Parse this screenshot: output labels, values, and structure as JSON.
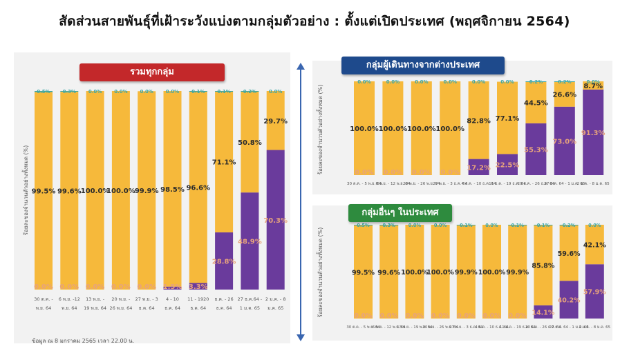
{
  "title": "สัดส่วนสายพันธุ์ที่เฝ้าระวังแบ่งตามกลุ่มตัวอย่าง : ตั้งแต่เปิดประเทศ (พฤศจิกายน 2564)",
  "footnote": "ข้อมูล ณ 8 มกราคม 2565 เวลา 22.00 น.",
  "colors": {
    "yellow": "#f6b93b",
    "purple": "#6a3b9c",
    "top_label": "#3aa6a6"
  },
  "chart_data": [
    {
      "type": "bar",
      "stacked": true,
      "panel_title": "รวมทุกกลุ่ม",
      "ylabel": "ร้อยละของจำนวนตัวอย่างทั้งหมด (%)",
      "ylim": [
        0,
        100
      ],
      "categories": [
        "30 ต.ค. - 5 พ.ย. 64",
        "6 พ.ย. - 12 พ.ย. 64",
        "13 พ.ย. - 19 พ.ย. 64",
        "20 พ.ย. - 26 พ.ย. 64",
        "27 พ.ย. - 3 ธ.ค. 64",
        "4 - 10 ธ.ค. 64",
        "11 - 1920 ธ.ค. 64",
        "ธ.ค. - 26 ธ.ค. 64",
        "27 ธ.ค. 64 - 1 ม.ค. 65",
        "2 ม.ค. - 8 ม.ค. 65"
      ],
      "tick_line1": [
        "30 ต.ค. -",
        "6 พ.ย. -12",
        "13 พ.ย. -",
        "20 พ.ย. -",
        "27 พ.ย. - 3",
        "4 - 10",
        "11 - 1920",
        "ธ.ค. - 26",
        "27 ธ.ค.64 -",
        "2 ม.ค. - 8"
      ],
      "tick_line2": [
        "พ.ย. 64",
        "พ.ย. 64",
        "19 พ.ย. 64",
        "26 พ.ย. 64",
        "ธ.ค. 64",
        "ธ.ค. 64",
        "ธ.ค. 64",
        "ธ.ค. 64",
        "1 ม.ค. 65",
        "ม.ค. 65"
      ],
      "series": [
        {
          "values": [
            0.0,
            0.0,
            0.0,
            0.0,
            0.0,
            1.5,
            3.3,
            28.8,
            48.9,
            70.3
          ],
          "labels": [
            "0.0%",
            "0.0%",
            "0.0%",
            "0.0%",
            "0.0%",
            "1.5%",
            "3.3%",
            "28.8%",
            "48.9%",
            "70.3%"
          ]
        },
        {
          "values": [
            99.5,
            99.6,
            100.0,
            100.0,
            99.9,
            98.5,
            96.6,
            71.1,
            50.8,
            29.7
          ],
          "labels": [
            "99.5%",
            "99.6%",
            "100.0%",
            "100.0%",
            "99.9%",
            "98.5%",
            "96.6%",
            "71.1%",
            "50.8%",
            "29.7%"
          ]
        },
        {
          "values": [
            0.5,
            0.3,
            0.0,
            0.0,
            0.0,
            0.0,
            0.1,
            0.1,
            0.2,
            0.0
          ],
          "labels": [
            "0.5%",
            "0.3%",
            "0.0%",
            "0.0%",
            "0.0%",
            "0.0%",
            "0.1%",
            "0.1%",
            "0.2%",
            "0.0%"
          ]
        }
      ]
    },
    {
      "type": "bar",
      "stacked": true,
      "panel_title": "กลุ่มผู้เดินทางจากต่างประเทศ",
      "ylabel": "ร้อยละของจำนวนตัวอย่างทั้งหมด (%)",
      "ylim": [
        0,
        100
      ],
      "categories": [
        "30 ต.ค. - 5 พ.ย. 64",
        "6 - 12 พ.ย. 64",
        "20 - 26 พ.ย. 64",
        "27 พ.ย. - 3 ธ.ค. 64",
        "4 - 10 ธ.ค. 64",
        "11 - 19 ธ.ค. 64",
        "20 - 26 ธ.ค. 64",
        "27 ธ.ค. 64 - 1 ม.ค. 65",
        "2 - 8 ม.ค. 65"
      ],
      "tick_line1": [
        "30 ต.ค. - 5 พ.ย. 64",
        "6 พ.ย. - 12 พ.ย. 64",
        "20 พ.ย. - 26 พ.ย. 64",
        "27 พ.ย. - 3 ธ.ค. 64",
        "4 ธ.ค. - 10 ธ.ค. 64",
        "11 ธ.ค. - 19 ธ.ค. 64",
        "20 ธ.ค. - 26 ธ.ค. 64",
        "27 ธ.ค. 64 - 1 ม.ค. 65",
        "2 ม.ค. - 8 ม.ค. 65"
      ],
      "tick_line2": [
        "",
        "",
        "",
        "",
        "",
        "",
        "",
        "",
        ""
      ],
      "series": [
        {
          "values": [
            0.0,
            0.0,
            0.0,
            0.0,
            17.2,
            22.5,
            55.3,
            73.0,
            91.3
          ],
          "labels": [
            "0.0%",
            "0.0%",
            "0.0%",
            "0.0%",
            "17.2%",
            "22.5%",
            "55.3%",
            "73.0%",
            "91.3%"
          ]
        },
        {
          "values": [
            100.0,
            100.0,
            100.0,
            100.0,
            82.8,
            77.1,
            44.5,
            26.6,
            8.7
          ],
          "labels": [
            "100.0%",
            "100.0%",
            "100.0%",
            "100.0%",
            "82.8%",
            "77.1%",
            "44.5%",
            "26.6%",
            "8.7%"
          ]
        },
        {
          "values": [
            0.0,
            0.0,
            0.0,
            0.0,
            0.0,
            0.0,
            0.2,
            0.2,
            0.0
          ],
          "labels": [
            "0.0%",
            "0.0%",
            "0.0%",
            "0.0%",
            "0.0%",
            "0.0%",
            "0.2%",
            "0.2%",
            "0.0%"
          ]
        }
      ]
    },
    {
      "type": "bar",
      "stacked": true,
      "panel_title": "กลุ่มอื่นๆ ในประเทศ",
      "ylabel": "ร้อยละของจำนวนตัวอย่างทั้งหมด (%)",
      "ylim": [
        0,
        100
      ],
      "categories": [
        "30 ต.ค. - 5 พ.ย. 64",
        "6 - 12 พ.ย. 64",
        "13 - 19 พ.ย. 64",
        "20 - 26 พ.ย. 64",
        "27 พ.ย. - 3 ธ.ค. 64",
        "4 - 10 ธ.ค. 64",
        "11 - 19 ธ.ค. 64",
        "20 - 26 ธ.ค. 64",
        "27 ธ.ค. 64 - 1 ม.ค. 65",
        "2 - 8 ม.ค. 65"
      ],
      "tick_line1": [
        "30 ต.ค. - 5 พ.ย. 64",
        "6 พ.ย. - 12 พ.ย. 64",
        "13 พ.ย. - 19 พ.ย. 64",
        "20 พ.ย. - 26 พ.ย. 64",
        "27 พ.ย. - 3 ธ.ค. 64",
        "4 ธ.ค. - 10 ธ.ค. 64",
        "11 ธ.ค. - 19 ธ.ค. 64",
        "20 ธ.ค. - 26 ธ.ค. 64",
        "27 ธ.ค. 64 - 1 ม.ค. 65",
        "2 ม.ค. - 8 ม.ค. 65"
      ],
      "tick_line2": [
        "",
        "",
        "",
        "",
        "",
        "",
        "",
        "",
        "",
        ""
      ],
      "series": [
        {
          "values": [
            0.0,
            0.0,
            0.0,
            0.0,
            0.0,
            0.0,
            0.0,
            14.1,
            40.2,
            57.9
          ],
          "labels": [
            "0.0%",
            "0.0%",
            "0.0%",
            "0.0%",
            "0.0%",
            "0.0%",
            "0.0%",
            "14.1%",
            "40.2%",
            "57.9%"
          ]
        },
        {
          "values": [
            99.5,
            99.6,
            100.0,
            100.0,
            99.9,
            100.0,
            99.9,
            85.8,
            59.6,
            42.1
          ],
          "labels": [
            "99.5%",
            "99.6%",
            "100.0%",
            "100.0%",
            "99.9%",
            "100.0%",
            "99.9%",
            "85.8%",
            "59.6%",
            "42.1%"
          ]
        },
        {
          "values": [
            0.5,
            0.3,
            0.0,
            0.0,
            0.1,
            0.0,
            0.1,
            0.1,
            0.2,
            0.0
          ],
          "labels": [
            "0.5%",
            "0.3%",
            "0.0%",
            "0.0%",
            "0.1%",
            "0.0%",
            "0.1%",
            "0.1%",
            "0.2%",
            "0.0%"
          ]
        }
      ]
    }
  ]
}
